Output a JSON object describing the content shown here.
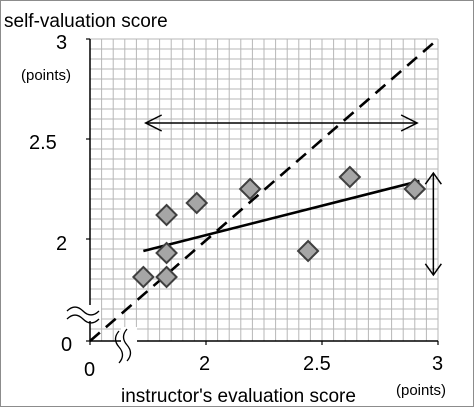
{
  "chart_data": {
    "type": "scatter",
    "title": "self-valuation score",
    "ylabel_unit": "(points)",
    "xlabel": "instructor's evaluation score",
    "xlabel_unit": "(points)",
    "xlim": [
      1.5,
      3
    ],
    "ylim": [
      1.5,
      3
    ],
    "x_ticks": [
      "2",
      "2.5",
      "3"
    ],
    "y_ticks": [
      "2",
      "2.5",
      "3"
    ],
    "x_origin_label": "0",
    "y_origin_label": "0",
    "axis_breaks": true,
    "grid": true,
    "points": [
      {
        "x": 1.73,
        "y": 1.81
      },
      {
        "x": 1.83,
        "y": 1.81
      },
      {
        "x": 1.83,
        "y": 1.93
      },
      {
        "x": 1.83,
        "y": 2.12
      },
      {
        "x": 1.96,
        "y": 2.18
      },
      {
        "x": 2.19,
        "y": 2.25
      },
      {
        "x": 2.44,
        "y": 1.94
      },
      {
        "x": 2.62,
        "y": 2.31
      },
      {
        "x": 2.9,
        "y": 2.25
      }
    ],
    "identity_line": {
      "from": [
        1.5,
        1.5
      ],
      "to": [
        3,
        3
      ],
      "style": "dashed"
    },
    "regression_line": {
      "from": [
        1.73,
        1.94
      ],
      "to": [
        2.92,
        2.29
      ],
      "style": "solid"
    },
    "annotations": [
      {
        "type": "double-arrow",
        "orientation": "horizontal",
        "from": [
          1.74,
          2.58
        ],
        "to": [
          2.91,
          2.58
        ]
      },
      {
        "type": "double-arrow",
        "orientation": "vertical",
        "from": [
          2.98,
          2.33
        ],
        "to": [
          2.98,
          1.82
        ]
      }
    ],
    "colors": {
      "marker_fill": "#a6a6a6",
      "marker_stroke": "#404040",
      "grid": "#b7b7b7",
      "axis": "#000000",
      "line": "#000000"
    }
  }
}
